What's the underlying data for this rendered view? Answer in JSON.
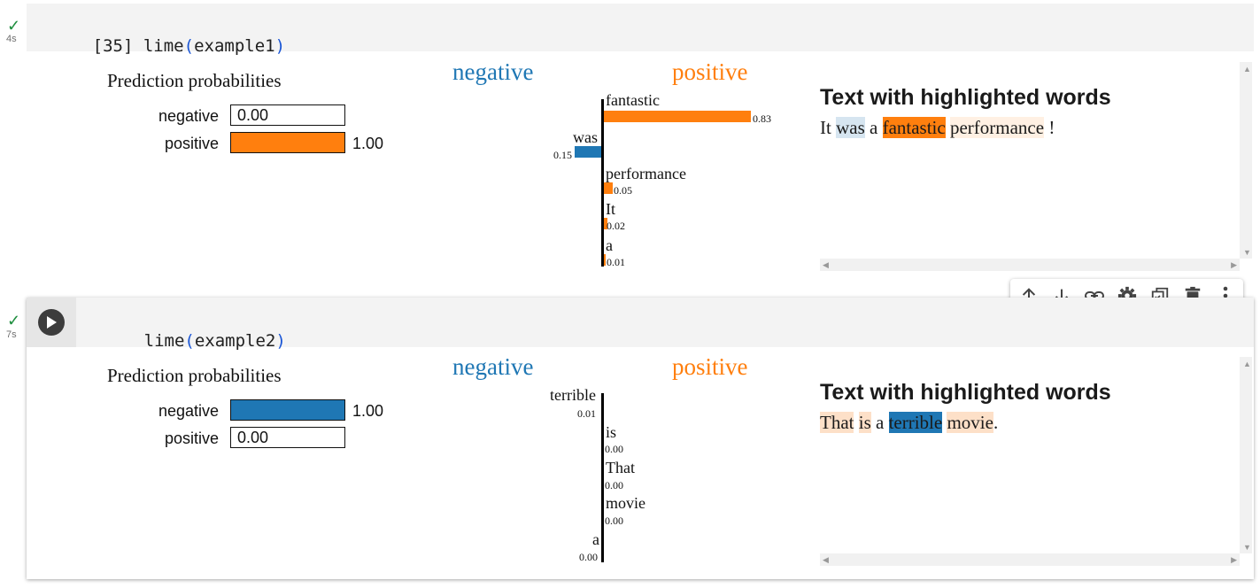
{
  "cells": [
    {
      "status_icon": "check-icon",
      "time": "4s",
      "exec_count": "[35]",
      "code_fn": "lime",
      "code_open": "(",
      "code_arg": "example1",
      "code_close": ")",
      "output": {
        "pred_title": "Prediction probabilities",
        "probs": [
          {
            "label": "negative",
            "value_text": "0.00",
            "value": 0.0,
            "color": "#1f77b4"
          },
          {
            "label": "positive",
            "value_text": "1.00",
            "value": 1.0,
            "color": "#ff7f0e"
          }
        ],
        "neg_heading": "negative",
        "pos_heading": "positive",
        "features": [
          {
            "word": "fantastic",
            "weight_text": "0.83",
            "weight": 0.83,
            "side": "positive"
          },
          {
            "word": "was",
            "weight_text": "0.15",
            "weight": 0.15,
            "side": "negative"
          },
          {
            "word": "performance",
            "weight_text": "0.05",
            "weight": 0.05,
            "side": "positive"
          },
          {
            "word": "It",
            "weight_text": "0.02",
            "weight": 0.02,
            "side": "positive"
          },
          {
            "word": "a",
            "weight_text": "0.01",
            "weight": 0.01,
            "side": "positive"
          }
        ],
        "hl_title": "Text with highlighted words",
        "hl_tokens": [
          {
            "text": "It",
            "bg": "none"
          },
          {
            "text": " ",
            "bg": "none"
          },
          {
            "text": "was",
            "bg": "#d6e5f0"
          },
          {
            "text": " a ",
            "bg": "none"
          },
          {
            "text": "fantastic",
            "bg": "#ff7f0e"
          },
          {
            "text": " ",
            "bg": "none"
          },
          {
            "text": "performance",
            "bg": "#fff0e3"
          },
          {
            "text": " !",
            "bg": "none"
          }
        ]
      }
    },
    {
      "status_icon": "check-icon",
      "time": "7s",
      "run_icon": "play-icon",
      "code_fn": "lime",
      "code_open": "(",
      "code_arg": "example2",
      "code_close": ")",
      "output": {
        "pred_title": "Prediction probabilities",
        "probs": [
          {
            "label": "negative",
            "value_text": "1.00",
            "value": 1.0,
            "color": "#1f77b4"
          },
          {
            "label": "positive",
            "value_text": "0.00",
            "value": 0.0,
            "color": "#ff7f0e"
          }
        ],
        "neg_heading": "negative",
        "pos_heading": "positive",
        "features": [
          {
            "word": "terrible",
            "weight_text": "0.01",
            "weight": 0.01,
            "side": "negative"
          },
          {
            "word": "is",
            "weight_text": "0.00",
            "weight": 0.0,
            "side": "positive"
          },
          {
            "word": "That",
            "weight_text": "0.00",
            "weight": 0.0,
            "side": "positive"
          },
          {
            "word": "movie",
            "weight_text": "0.00",
            "weight": 0.0,
            "side": "positive"
          },
          {
            "word": "a",
            "weight_text": "0.00",
            "weight": 0.0,
            "side": "negative"
          }
        ],
        "hl_title": "Text with highlighted words",
        "hl_tokens": [
          {
            "text": "That",
            "bg": "#fde0c8"
          },
          {
            "text": " ",
            "bg": "none"
          },
          {
            "text": "is",
            "bg": "#fde0c8"
          },
          {
            "text": " a ",
            "bg": "none"
          },
          {
            "text": "terrible",
            "bg": "#1f77b4"
          },
          {
            "text": " ",
            "bg": "none"
          },
          {
            "text": "movie",
            "bg": "#fde0c8"
          },
          {
            "text": ".",
            "bg": "none"
          }
        ]
      }
    }
  ],
  "toolbar": {
    "buttons": [
      {
        "name": "move-up-button",
        "icon": "arrow-up-icon"
      },
      {
        "name": "move-down-button",
        "icon": "arrow-down-icon"
      },
      {
        "name": "copy-link-button",
        "icon": "link-icon"
      },
      {
        "name": "cell-settings-button",
        "icon": "gear-icon"
      },
      {
        "name": "mirror-cell-button",
        "icon": "mirror-icon"
      },
      {
        "name": "delete-cell-button",
        "icon": "trash-icon"
      },
      {
        "name": "more-actions-button",
        "icon": "more-vert-icon"
      }
    ]
  },
  "colors": {
    "negative": "#1f77b4",
    "positive": "#ff7f0e",
    "check": "#1e8e3e",
    "code_paren": "#1a56d6"
  }
}
